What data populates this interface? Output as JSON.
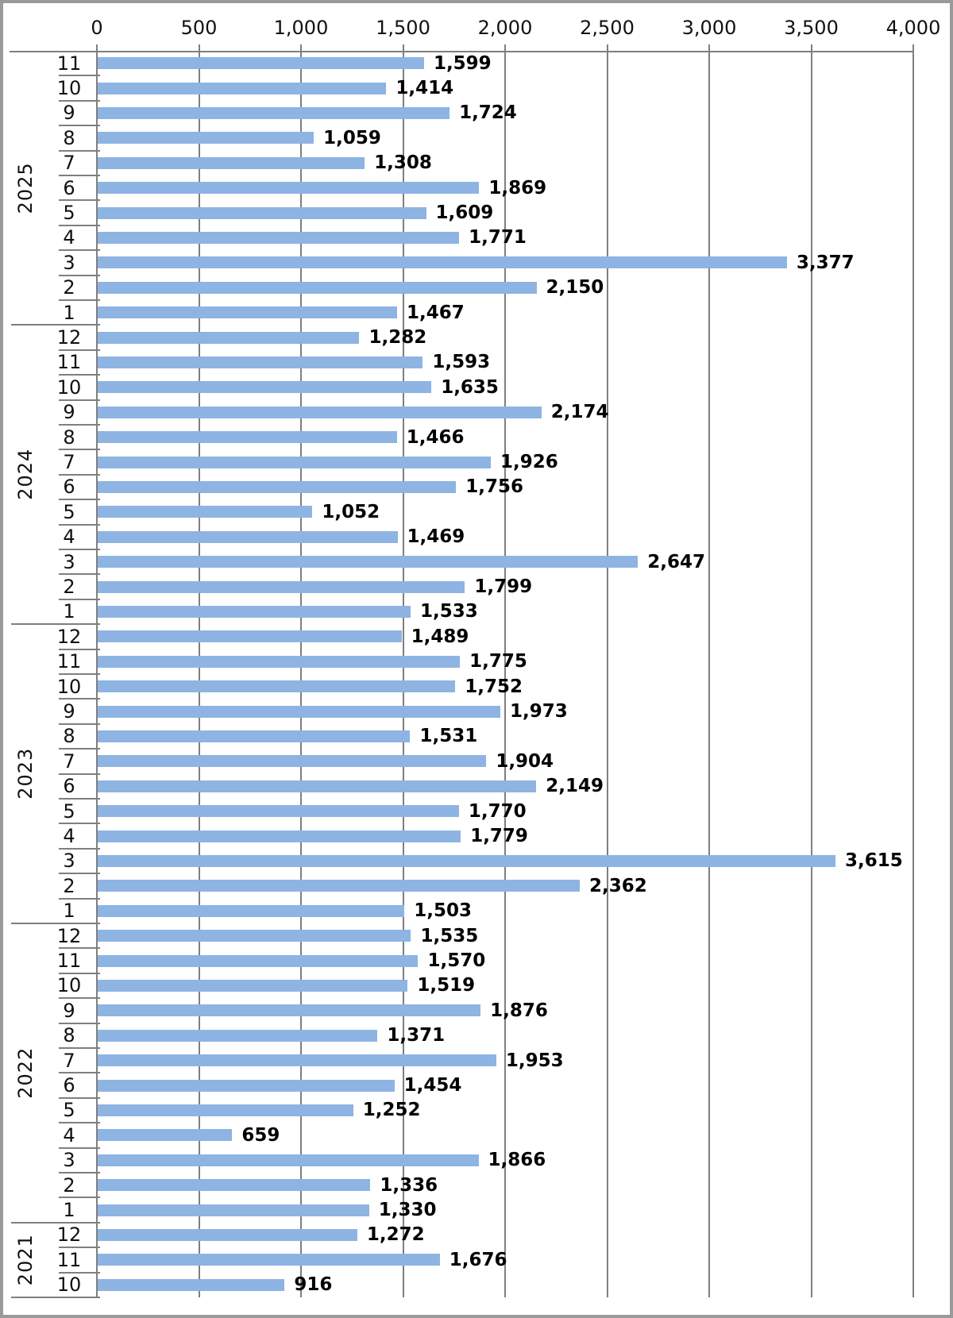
{
  "chart_data": {
    "type": "bar",
    "orientation": "horizontal",
    "title": "",
    "value_axis": {
      "position": "top",
      "max": 4000,
      "tick_values": [
        0,
        500,
        1000,
        1500,
        2000,
        2500,
        3000,
        3500,
        4000
      ],
      "tick_labels": [
        "0",
        "500",
        "1,000",
        "1,500",
        "2,000",
        "2,500",
        "3,000",
        "3,500",
        "4,000"
      ],
      "gridlines": true
    },
    "category_axis": {
      "position": "left",
      "levels": [
        "year",
        "month"
      ]
    },
    "bar_color": "#8db4e2",
    "line_color": "#7f7f7f",
    "label_color": "#000000",
    "groups": [
      {
        "year": "2025",
        "rows": [
          {
            "month": "11",
            "value": 1599
          },
          {
            "month": "10",
            "value": 1414
          },
          {
            "month": "9",
            "value": 1724
          },
          {
            "month": "8",
            "value": 1059
          },
          {
            "month": "7",
            "value": 1308
          },
          {
            "month": "6",
            "value": 1869
          },
          {
            "month": "5",
            "value": 1609
          },
          {
            "month": "4",
            "value": 1771
          },
          {
            "month": "3",
            "value": 3377
          },
          {
            "month": "2",
            "value": 2150
          },
          {
            "month": "1",
            "value": 1467
          }
        ]
      },
      {
        "year": "2024",
        "rows": [
          {
            "month": "12",
            "value": 1282
          },
          {
            "month": "11",
            "value": 1593
          },
          {
            "month": "10",
            "value": 1635
          },
          {
            "month": "9",
            "value": 2174
          },
          {
            "month": "8",
            "value": 1466
          },
          {
            "month": "7",
            "value": 1926
          },
          {
            "month": "6",
            "value": 1756
          },
          {
            "month": "5",
            "value": 1052
          },
          {
            "month": "4",
            "value": 1469
          },
          {
            "month": "3",
            "value": 2647
          },
          {
            "month": "2",
            "value": 1799
          },
          {
            "month": "1",
            "value": 1533
          }
        ]
      },
      {
        "year": "2023",
        "rows": [
          {
            "month": "12",
            "value": 1489
          },
          {
            "month": "11",
            "value": 1775
          },
          {
            "month": "10",
            "value": 1752
          },
          {
            "month": "9",
            "value": 1973
          },
          {
            "month": "8",
            "value": 1531
          },
          {
            "month": "7",
            "value": 1904
          },
          {
            "month": "6",
            "value": 2149
          },
          {
            "month": "5",
            "value": 1770
          },
          {
            "month": "4",
            "value": 1779
          },
          {
            "month": "3",
            "value": 3615
          },
          {
            "month": "2",
            "value": 2362
          },
          {
            "month": "1",
            "value": 1503
          }
        ]
      },
      {
        "year": "2022",
        "rows": [
          {
            "month": "12",
            "value": 1535
          },
          {
            "month": "11",
            "value": 1570
          },
          {
            "month": "10",
            "value": 1519
          },
          {
            "month": "9",
            "value": 1876
          },
          {
            "month": "8",
            "value": 1371
          },
          {
            "month": "7",
            "value": 1953
          },
          {
            "month": "6",
            "value": 1454
          },
          {
            "month": "5",
            "value": 1252
          },
          {
            "month": "4",
            "value": 659
          },
          {
            "month": "3",
            "value": 1866
          },
          {
            "month": "2",
            "value": 1336
          },
          {
            "month": "1",
            "value": 1330
          }
        ]
      },
      {
        "year": "2021",
        "rows": [
          {
            "month": "12",
            "value": 1272
          },
          {
            "month": "11",
            "value": 1676
          },
          {
            "month": "10",
            "value": 916
          }
        ]
      }
    ]
  }
}
